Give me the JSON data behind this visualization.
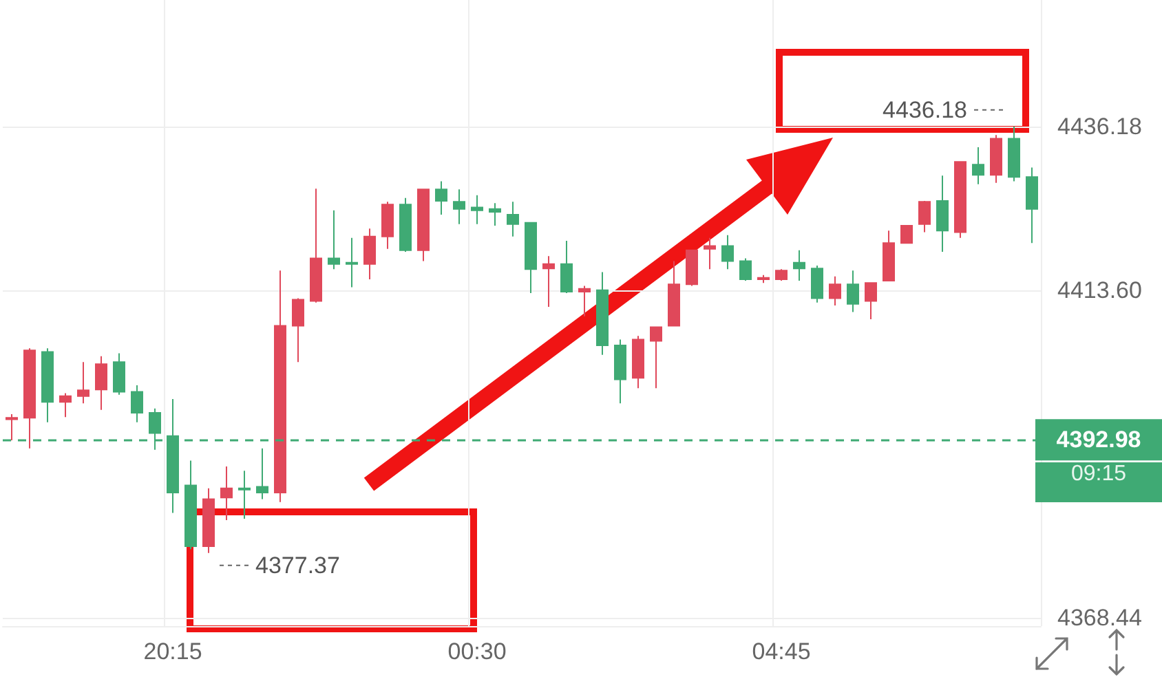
{
  "chart_data": {
    "type": "candlestick",
    "categories": [
      null,
      null,
      null,
      null,
      null,
      null,
      null,
      null,
      null,
      "20:15",
      null,
      null,
      null,
      null,
      null,
      null,
      null,
      null,
      null,
      null,
      null,
      null,
      null,
      null,
      null,
      null,
      "00:30",
      null,
      null,
      null,
      null,
      null,
      null,
      null,
      null,
      null,
      null,
      null,
      null,
      null,
      null,
      null,
      null,
      "04:45",
      null,
      null,
      null,
      null,
      null,
      null,
      null,
      null,
      null,
      null,
      null,
      null,
      null,
      null
    ],
    "ohlc": [
      [
        4395.8,
        4396.5,
        4392.9,
        4396.0
      ],
      [
        4396.0,
        4405.6,
        4391.8,
        4405.3
      ],
      [
        4405.1,
        4405.6,
        4395.4,
        4398.2
      ],
      [
        4398.2,
        4399.4,
        4396.1,
        4399.0
      ],
      [
        4399.0,
        4403.7,
        4398.0,
        4399.8
      ],
      [
        4399.9,
        4404.5,
        4397.1,
        4403.4
      ],
      [
        4403.7,
        4404.9,
        4399.2,
        4399.6
      ],
      [
        4399.6,
        4400.5,
        4395.4,
        4396.7
      ],
      [
        4396.7,
        4397.3,
        4391.6,
        4393.9
      ],
      [
        4393.5,
        4398.6,
        4382.9,
        4385.7
      ],
      [
        4386.7,
        4390.1,
        4377.9,
        4378.3
      ],
      [
        4378.3,
        4386.3,
        4377.37,
        4384.8
      ],
      [
        4385.0,
        4389.3,
        4381.9,
        4386.3
      ],
      [
        4386.3,
        4388.7,
        4382.1,
        4386.1
      ],
      [
        4386.5,
        4391.8,
        4384.8,
        4385.7
      ],
      [
        4385.7,
        4416.3,
        4384.4,
        4408.7
      ],
      [
        4408.7,
        4412.5,
        4403.7,
        4412.3
      ],
      [
        4412.1,
        4427.6,
        4411.9,
        4418.0
      ],
      [
        4418.0,
        4424.6,
        4416.5,
        4417.2
      ],
      [
        4417.4,
        4420.8,
        4414.0,
        4417.2
      ],
      [
        4417.2,
        4422.1,
        4415.1,
        4421.0
      ],
      [
        4421.0,
        4425.8,
        4419.3,
        4425.4
      ],
      [
        4425.4,
        4426.3,
        4418.9,
        4419.1
      ],
      [
        4419.1,
        4427.6,
        4417.6,
        4427.5
      ],
      [
        4427.5,
        4428.6,
        4424.0,
        4425.9
      ],
      [
        4425.8,
        4427.5,
        4422.7,
        4424.8
      ],
      [
        4425.0,
        4426.7,
        4422.7,
        4424.6
      ],
      [
        4424.8,
        4425.6,
        4422.5,
        4424.4
      ],
      [
        4424.0,
        4425.8,
        4421.0,
        4422.7
      ],
      [
        4422.9,
        4422.9,
        4413.2,
        4416.5
      ],
      [
        4416.6,
        4418.3,
        4411.3,
        4417.2
      ],
      [
        4417.2,
        4420.4,
        4413.2,
        4413.4
      ],
      [
        4413.4,
        4414.2,
        4410.0,
        4413.8
      ],
      [
        4413.6,
        4416.1,
        4404.7,
        4406.0
      ],
      [
        4406.0,
        4406.8,
        4398.0,
        4401.3
      ],
      [
        4401.5,
        4407.3,
        4400.1,
        4406.8
      ],
      [
        4406.6,
        4408.5,
        4400.1,
        4408.5
      ],
      [
        4408.7,
        4417.6,
        4408.7,
        4414.4
      ],
      [
        4414.4,
        4419.1,
        4414.2,
        4419.1
      ],
      [
        4419.3,
        4420.8,
        4416.5,
        4419.7
      ],
      [
        4419.7,
        4421.2,
        4416.5,
        4417.6
      ],
      [
        4417.6,
        4418.0,
        4414.9,
        4415.1
      ],
      [
        4415.1,
        4415.7,
        4414.6,
        4415.3
      ],
      [
        4415.1,
        4416.5,
        4414.9,
        4416.3
      ],
      [
        4417.4,
        4419.1,
        4414.9,
        4416.6
      ],
      [
        4416.6,
        4417.0,
        4411.9,
        4412.5
      ],
      [
        4412.5,
        4415.5,
        4411.5,
        4414.4
      ],
      [
        4414.4,
        4416.3,
        4410.6,
        4411.7
      ],
      [
        4412.1,
        4414.6,
        4409.6,
        4414.6
      ],
      [
        4414.9,
        4421.8,
        4414.9,
        4420.1
      ],
      [
        4420.1,
        4422.5,
        4420.1,
        4422.5
      ],
      [
        4422.7,
        4425.9,
        4421.6,
        4425.8
      ],
      [
        4425.9,
        4429.4,
        4418.9,
        4421.8
      ],
      [
        4421.6,
        4431.3,
        4420.8,
        4431.3
      ],
      [
        4430.9,
        4433.3,
        4428.2,
        4429.5
      ],
      [
        4429.5,
        4435.0,
        4428.4,
        4434.5
      ],
      [
        4434.5,
        4436.18,
        4428.6,
        4429.2
      ],
      [
        4429.2,
        4430.5,
        4420.1,
        4424.8
      ]
    ],
    "colors": [
      "#e0485a",
      "#e0485a",
      "#3faa74",
      "#e0485a",
      "#e0485a",
      "#e0485a",
      "#3faa74",
      "#3faa74",
      "#3faa74",
      "#3faa74",
      "#3faa74",
      "#e0485a",
      "#e0485a",
      "#3faa74",
      "#3faa74",
      "#e0485a",
      "#e0485a",
      "#e0485a",
      "#3faa74",
      "#3faa74",
      "#e0485a",
      "#e0485a",
      "#3faa74",
      "#e0485a",
      "#3faa74",
      "#3faa74",
      "#3faa74",
      "#3faa74",
      "#3faa74",
      "#3faa74",
      "#e0485a",
      "#3faa74",
      "#e0485a",
      "#3faa74",
      "#3faa74",
      "#e0485a",
      "#e0485a",
      "#e0485a",
      "#e0485a",
      "#e0485a",
      "#3faa74",
      "#3faa74",
      "#e0485a",
      "#e0485a",
      "#3faa74",
      "#3faa74",
      "#e0485a",
      "#3faa74",
      "#e0485a",
      "#e0485a",
      "#e0485a",
      "#e0485a",
      "#3faa74",
      "#e0485a",
      "#3faa74",
      "#e0485a",
      "#3faa74",
      "#3faa74"
    ],
    "ylim": [
      4367.3,
      4453.6
    ],
    "yticks": [
      4368.44,
      {
        "value": 4413.6,
        "label": "4413.60"
      },
      4436.18
    ],
    "grid": true,
    "ref_lines": [
      {
        "axis": "y",
        "value": 4392.98,
        "label": "4392.98",
        "color": "#3faa74",
        "line_style": "dashed"
      }
    ],
    "annotations": [
      "4436.18",
      "4377.37",
      "09:15"
    ]
  }
}
